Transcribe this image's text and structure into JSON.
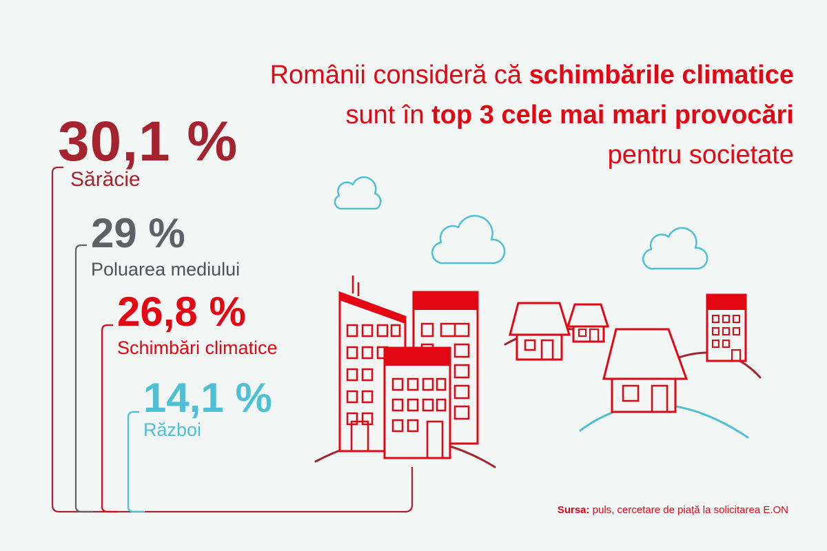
{
  "title": {
    "line1_pre": "Românii consideră că ",
    "line1_bold": "schimbările climatice",
    "line2_pre": "sunt în ",
    "line2_bold": "top 3 cele mai mari provocări",
    "line3": "pentru societate"
  },
  "stats": [
    {
      "value": "30,1 %",
      "label": "Sărăcie",
      "color": "#a3232e"
    },
    {
      "value": "29 %",
      "label": "Poluarea mediului",
      "color": "#5e6264"
    },
    {
      "value": "26,8 %",
      "label": "Schimbări climatice",
      "color": "#e30613"
    },
    {
      "value": "14,1 %",
      "label": "Război",
      "color": "#4ec0d4"
    }
  ],
  "source": {
    "label": "Sursa:",
    "text": " puls, cercetare de piață la solicitarea E.ON"
  },
  "colors": {
    "red": "#e30613",
    "dark_red": "#a3232e",
    "gray": "#5e6264",
    "light_blue": "#4ec0d4",
    "background": "#f2f7f6"
  },
  "illustration": [
    "cloud-icon",
    "cloud-icon",
    "cloud-icon",
    "cloud-icon",
    "apartment-building-icon",
    "house-icon",
    "hill-icon"
  ]
}
